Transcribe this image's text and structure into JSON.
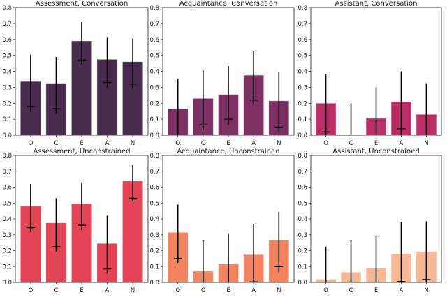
{
  "chart_data": [
    {
      "type": "bar",
      "title": "Assessment, Conversation",
      "color": "#4a2c50",
      "categories": [
        "O",
        "C",
        "E",
        "A",
        "N"
      ],
      "values": [
        0.34,
        0.325,
        0.59,
        0.475,
        0.46
      ],
      "markers": [
        0.18,
        0.165,
        0.47,
        0.33,
        0.32
      ],
      "err_low": [
        0.15,
        0.135,
        0.44,
        0.3,
        0.29
      ],
      "err_high": [
        0.505,
        0.49,
        0.71,
        0.615,
        0.605
      ],
      "ylim": [
        0,
        0.8
      ],
      "yticks": [
        "0.0",
        "0.1",
        "0.2",
        "0.3",
        "0.4",
        "0.5",
        "0.6",
        "0.7",
        "0.8"
      ]
    },
    {
      "type": "bar",
      "title": "Acquaintance, Conversation",
      "color": "#7e2f63",
      "categories": [
        "O",
        "C",
        "E",
        "A",
        "N"
      ],
      "values": [
        0.165,
        0.23,
        0.255,
        0.375,
        0.215
      ],
      "markers": [
        null,
        0.065,
        0.1,
        0.22,
        0.05
      ],
      "err_low": [
        0,
        0.03,
        0.065,
        0.19,
        0.02
      ],
      "err_high": [
        0.355,
        0.405,
        0.435,
        0.53,
        0.395
      ],
      "ylim": [
        0,
        0.8
      ],
      "yticks": [
        "0.0",
        "0.1",
        "0.2",
        "0.3",
        "0.4",
        "0.5",
        "0.6",
        "0.7",
        "0.8"
      ]
    },
    {
      "type": "bar",
      "title": "Assistant, Conversation",
      "color": "#b92e66",
      "categories": [
        "O",
        "C",
        "E",
        "A",
        "N"
      ],
      "values": [
        0.2,
        0.0,
        0.105,
        0.21,
        0.13
      ],
      "markers": [
        0.02,
        null,
        null,
        0.04,
        null
      ],
      "err_low": [
        0,
        0,
        0,
        0,
        0
      ],
      "err_high": [
        0.385,
        0.2,
        0.3,
        0.4,
        0.325
      ],
      "ylim": [
        0,
        0.8
      ],
      "yticks": [
        "0.0",
        "0.1",
        "0.2",
        "0.3",
        "0.4",
        "0.5",
        "0.6",
        "0.7",
        "0.8"
      ]
    },
    {
      "type": "bar",
      "title": "Assessment, Unconstrained",
      "color": "#e34557",
      "categories": [
        "O",
        "C",
        "E",
        "A",
        "N"
      ],
      "values": [
        0.48,
        0.375,
        0.495,
        0.245,
        0.64
      ],
      "markers": [
        0.345,
        0.225,
        0.36,
        0.085,
        0.53
      ],
      "err_low": [
        0.315,
        0.195,
        0.33,
        0.055,
        0.51
      ],
      "err_high": [
        0.62,
        0.53,
        0.63,
        0.42,
        0.74
      ],
      "ylim": [
        0,
        0.8
      ],
      "yticks": [
        "0.0",
        "0.1",
        "0.2",
        "0.3",
        "0.4",
        "0.5",
        "0.6",
        "0.7",
        "0.8"
      ]
    },
    {
      "type": "bar",
      "title": "Acquaintance, Unconstrained",
      "color": "#f2845f",
      "categories": [
        "O",
        "C",
        "E",
        "A",
        "N"
      ],
      "values": [
        0.315,
        0.07,
        0.115,
        0.175,
        0.265
      ],
      "markers": [
        0.15,
        null,
        null,
        0.003,
        0.1
      ],
      "err_low": [
        0.12,
        0,
        0,
        0,
        0.065
      ],
      "err_high": [
        0.49,
        0.265,
        0.31,
        0.37,
        0.445
      ],
      "ylim": [
        0,
        0.8
      ],
      "yticks": [
        "0.0",
        "0.1",
        "0.2",
        "0.3",
        "0.4",
        "0.5",
        "0.6",
        "0.7",
        "0.8"
      ]
    },
    {
      "type": "bar",
      "title": "Assistant, Unconstrained",
      "color": "#f6b794",
      "categories": [
        "O",
        "C",
        "E",
        "A",
        "N"
      ],
      "values": [
        0.02,
        0.065,
        0.09,
        0.18,
        0.195
      ],
      "markers": [
        null,
        null,
        null,
        0.005,
        0.018
      ],
      "err_low": [
        0,
        0,
        0,
        0,
        0
      ],
      "err_high": [
        0.225,
        0.265,
        0.29,
        0.38,
        0.385
      ],
      "ylim": [
        0,
        0.8
      ],
      "yticks": [
        "0.0",
        "0.1",
        "0.2",
        "0.3",
        "0.4",
        "0.5",
        "0.6",
        "0.7",
        "0.8"
      ]
    }
  ]
}
